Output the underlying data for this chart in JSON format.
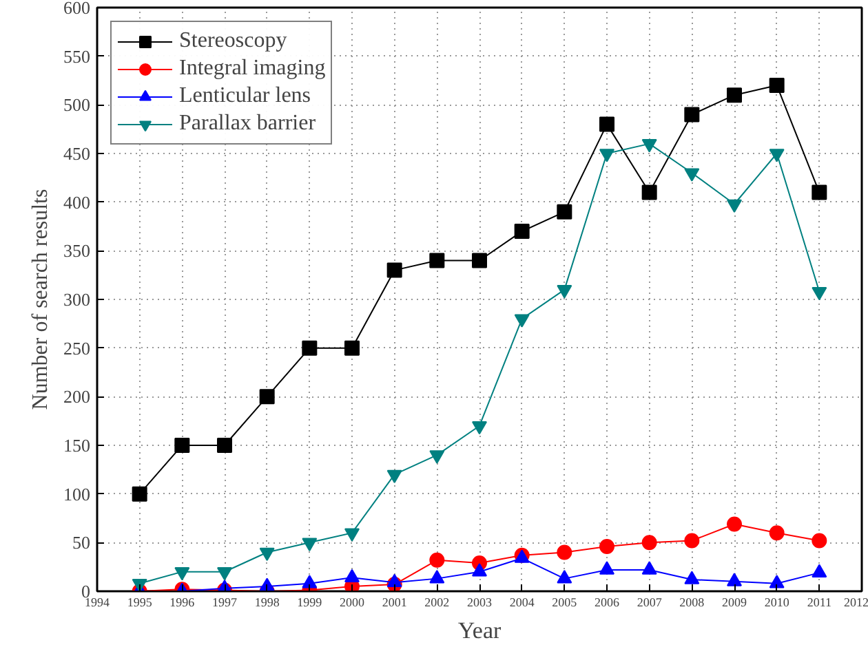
{
  "chart_data": {
    "type": "line",
    "xlabel": "Year",
    "ylabel": "Number of search results",
    "x": [
      1995,
      1996,
      1997,
      1998,
      1999,
      2000,
      2001,
      2002,
      2003,
      2004,
      2005,
      2006,
      2007,
      2008,
      2009,
      2010,
      2011
    ],
    "series": [
      {
        "name": "Stereoscopy",
        "color": "#000000",
        "marker": "square",
        "values": [
          100,
          150,
          150,
          200,
          250,
          250,
          330,
          340,
          340,
          370,
          390,
          480,
          410,
          490,
          510,
          520,
          410
        ]
      },
      {
        "name": "Integral imaging",
        "color": "#ff0000",
        "marker": "circle",
        "values": [
          0,
          2,
          1,
          0,
          1,
          5,
          7,
          32,
          29,
          37,
          40,
          46,
          50,
          52,
          69,
          60,
          52
        ]
      },
      {
        "name": "Lenticular lens",
        "color": "#0000ff",
        "marker": "triangle",
        "values": [
          0,
          0,
          3,
          5,
          8,
          14,
          9,
          13,
          20,
          34,
          13,
          22,
          22,
          12,
          10,
          8,
          19
        ]
      },
      {
        "name": "Parallax barrier",
        "color": "#008080",
        "marker": "triangle",
        "values": [
          8,
          20,
          20,
          40,
          50,
          60,
          120,
          140,
          170,
          280,
          310,
          450,
          460,
          430,
          398,
          450,
          308
        ]
      }
    ],
    "xlim": [
      1994,
      2012
    ],
    "xticks": [
      1994,
      1995,
      1996,
      1997,
      1998,
      1999,
      2000,
      2001,
      2002,
      2003,
      2004,
      2005,
      2006,
      2007,
      2008,
      2009,
      2010,
      2011,
      2012
    ],
    "ylim": [
      0,
      600
    ],
    "yticks": [
      0,
      50,
      100,
      150,
      200,
      250,
      300,
      350,
      400,
      450,
      500,
      550,
      600
    ],
    "grid": true,
    "legend": "top left",
    "line_style": "solid"
  }
}
